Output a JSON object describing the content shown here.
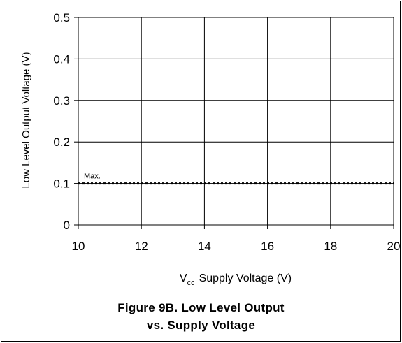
{
  "chart_data": {
    "type": "line",
    "title": "Figure 9B. Low Level Output vs. Supply Voltage",
    "caption_lines": [
      "Figure 9B. Low Level Output",
      "vs. Supply Voltage"
    ],
    "xlabel": "Supply Voltage (V)",
    "xlabel_symbol": "V",
    "xlabel_subscript": "cc",
    "ylabel": "Low Level Output Voltage (V)",
    "xlim": [
      10,
      20
    ],
    "ylim": [
      0,
      0.5
    ],
    "x_ticks": [
      "10",
      "12",
      "14",
      "16",
      "18",
      "20"
    ],
    "y_ticks": [
      "0",
      "0.1",
      "0.2",
      "0.3",
      "0.4",
      "0.5"
    ],
    "grid": true,
    "series": [
      {
        "name": "Max.",
        "style": "dotted",
        "color": "#000000",
        "x": [
          10,
          20
        ],
        "y": [
          0.1,
          0.1
        ]
      }
    ]
  }
}
